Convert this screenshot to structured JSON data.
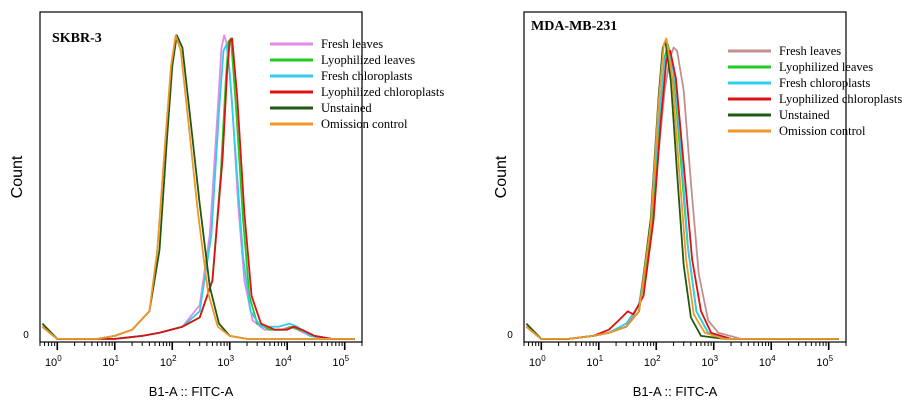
{
  "chart_data": [
    {
      "type": "line",
      "title": "SKBR-3",
      "xlabel": "B1-A :: FITC-A",
      "ylabel": "Count",
      "x_scale": "log",
      "xlim": [
        0.5,
        200000
      ],
      "ylim": [
        0,
        1.05
      ],
      "y_zero_label": "0",
      "x_ticks": [
        {
          "base": "10",
          "exp": "0",
          "value": 1
        },
        {
          "base": "10",
          "exp": "1",
          "value": 10
        },
        {
          "base": "10",
          "exp": "2",
          "value": 100
        },
        {
          "base": "10",
          "exp": "3",
          "value": 1000
        },
        {
          "base": "10",
          "exp": "4",
          "value": 10000
        },
        {
          "base": "10",
          "exp": "5",
          "value": 100000
        }
      ],
      "legend": "top-right",
      "series": [
        {
          "name": "Fresh leaves",
          "color": "#e58ae5",
          "points": [
            [
              0.55,
              0.05
            ],
            [
              1,
              0.01
            ],
            [
              10,
              0.01
            ],
            [
              30,
              0.02
            ],
            [
              60,
              0.03
            ],
            [
              150,
              0.05
            ],
            [
              300,
              0.12
            ],
            [
              450,
              0.35
            ],
            [
              600,
              0.72
            ],
            [
              720,
              0.96
            ],
            [
              800,
              1.0
            ],
            [
              900,
              0.97
            ],
            [
              1100,
              0.78
            ],
            [
              1400,
              0.45
            ],
            [
              1800,
              0.2
            ],
            [
              2500,
              0.07
            ],
            [
              4000,
              0.04
            ],
            [
              8000,
              0.04
            ],
            [
              11000,
              0.05
            ],
            [
              15000,
              0.04
            ],
            [
              25000,
              0.02
            ],
            [
              50000,
              0.01
            ],
            [
              150000,
              0.01
            ]
          ]
        },
        {
          "name": "Lyophilized leaves",
          "color": "#22cc22",
          "points": [
            [
              0.55,
              0.05
            ],
            [
              1,
              0.01
            ],
            [
              10,
              0.01
            ],
            [
              30,
              0.02
            ],
            [
              60,
              0.03
            ],
            [
              150,
              0.05
            ],
            [
              300,
              0.08
            ],
            [
              500,
              0.2
            ],
            [
              700,
              0.55
            ],
            [
              850,
              0.85
            ],
            [
              950,
              0.98
            ],
            [
              1050,
              0.99
            ],
            [
              1300,
              0.75
            ],
            [
              1700,
              0.4
            ],
            [
              2200,
              0.15
            ],
            [
              3000,
              0.06
            ],
            [
              5000,
              0.04
            ],
            [
              9000,
              0.04
            ],
            [
              12000,
              0.05
            ],
            [
              16000,
              0.04
            ],
            [
              30000,
              0.02
            ],
            [
              60000,
              0.01
            ],
            [
              150000,
              0.01
            ]
          ]
        },
        {
          "name": "Fresh chloroplasts",
          "color": "#33ccee",
          "points": [
            [
              0.55,
              0.05
            ],
            [
              1,
              0.01
            ],
            [
              10,
              0.01
            ],
            [
              30,
              0.02
            ],
            [
              60,
              0.03
            ],
            [
              150,
              0.05
            ],
            [
              300,
              0.1
            ],
            [
              480,
              0.35
            ],
            [
              650,
              0.75
            ],
            [
              780,
              0.95
            ],
            [
              880,
              0.97
            ],
            [
              1000,
              0.88
            ],
            [
              1300,
              0.58
            ],
            [
              1700,
              0.28
            ],
            [
              2300,
              0.1
            ],
            [
              3500,
              0.05
            ],
            [
              7000,
              0.05
            ],
            [
              11000,
              0.06
            ],
            [
              15000,
              0.05
            ],
            [
              25000,
              0.02
            ],
            [
              50000,
              0.01
            ],
            [
              150000,
              0.01
            ]
          ]
        },
        {
          "name": "Lyophilized chloroplasts",
          "color": "#dd1111",
          "points": [
            [
              0.55,
              0.05
            ],
            [
              1,
              0.01
            ],
            [
              10,
              0.01
            ],
            [
              30,
              0.02
            ],
            [
              60,
              0.03
            ],
            [
              150,
              0.05
            ],
            [
              300,
              0.08
            ],
            [
              500,
              0.2
            ],
            [
              750,
              0.6
            ],
            [
              900,
              0.88
            ],
            [
              1000,
              0.98
            ],
            [
              1100,
              0.99
            ],
            [
              1350,
              0.8
            ],
            [
              1800,
              0.42
            ],
            [
              2400,
              0.15
            ],
            [
              3500,
              0.06
            ],
            [
              6000,
              0.04
            ],
            [
              10000,
              0.04
            ],
            [
              13000,
              0.05
            ],
            [
              18000,
              0.04
            ],
            [
              30000,
              0.02
            ],
            [
              60000,
              0.01
            ],
            [
              150000,
              0.01
            ]
          ]
        },
        {
          "name": "Unstained",
          "color": "#1f5a10",
          "points": [
            [
              0.55,
              0.06
            ],
            [
              1,
              0.01
            ],
            [
              5,
              0.01
            ],
            [
              10,
              0.02
            ],
            [
              20,
              0.04
            ],
            [
              40,
              0.1
            ],
            [
              60,
              0.3
            ],
            [
              80,
              0.65
            ],
            [
              100,
              0.9
            ],
            [
              120,
              1.0
            ],
            [
              150,
              0.96
            ],
            [
              200,
              0.75
            ],
            [
              300,
              0.45
            ],
            [
              450,
              0.18
            ],
            [
              650,
              0.06
            ],
            [
              1000,
              0.02
            ],
            [
              2000,
              0.01
            ],
            [
              10000,
              0.01
            ],
            [
              150000,
              0.01
            ]
          ]
        },
        {
          "name": "Omission control",
          "color": "#f0962a",
          "points": [
            [
              0.55,
              0.05
            ],
            [
              1,
              0.01
            ],
            [
              5,
              0.01
            ],
            [
              10,
              0.02
            ],
            [
              20,
              0.04
            ],
            [
              40,
              0.1
            ],
            [
              55,
              0.3
            ],
            [
              75,
              0.65
            ],
            [
              95,
              0.9
            ],
            [
              115,
              1.0
            ],
            [
              140,
              0.95
            ],
            [
              190,
              0.72
            ],
            [
              280,
              0.42
            ],
            [
              420,
              0.16
            ],
            [
              620,
              0.05
            ],
            [
              1000,
              0.02
            ],
            [
              2000,
              0.01
            ],
            [
              10000,
              0.01
            ],
            [
              150000,
              0.01
            ]
          ]
        }
      ]
    },
    {
      "type": "line",
      "title": "MDA-MB-231",
      "xlabel": "B1-A :: FITC-A",
      "ylabel": "Count",
      "x_scale": "log",
      "xlim": [
        0.5,
        200000
      ],
      "ylim": [
        0,
        1.05
      ],
      "y_zero_label": "0",
      "x_ticks": [
        {
          "base": "10",
          "exp": "0",
          "value": 1
        },
        {
          "base": "10",
          "exp": "1",
          "value": 10
        },
        {
          "base": "10",
          "exp": "2",
          "value": 100
        },
        {
          "base": "10",
          "exp": "3",
          "value": 1000
        },
        {
          "base": "10",
          "exp": "4",
          "value": 10000
        },
        {
          "base": "10",
          "exp": "5",
          "value": 100000
        }
      ],
      "legend": "top-right",
      "series": [
        {
          "name": "Fresh leaves",
          "color": "#c09090",
          "points": [
            [
              0.55,
              0.05
            ],
            [
              1,
              0.01
            ],
            [
              3,
              0.01
            ],
            [
              8,
              0.02
            ],
            [
              15,
              0.03
            ],
            [
              30,
              0.05
            ],
            [
              50,
              0.12
            ],
            [
              80,
              0.35
            ],
            [
              110,
              0.62
            ],
            [
              140,
              0.82
            ],
            [
              170,
              0.92
            ],
            [
              200,
              0.96
            ],
            [
              230,
              0.95
            ],
            [
              300,
              0.82
            ],
            [
              400,
              0.52
            ],
            [
              550,
              0.22
            ],
            [
              800,
              0.07
            ],
            [
              1200,
              0.03
            ],
            [
              3000,
              0.01
            ],
            [
              150000,
              0.01
            ]
          ]
        },
        {
          "name": "Lyophilized leaves",
          "color": "#22cc22",
          "points": [
            [
              0.55,
              0.05
            ],
            [
              1,
              0.01
            ],
            [
              3,
              0.01
            ],
            [
              8,
              0.02
            ],
            [
              15,
              0.03
            ],
            [
              30,
              0.05
            ],
            [
              50,
              0.1
            ],
            [
              80,
              0.35
            ],
            [
              110,
              0.7
            ],
            [
              140,
              0.93
            ],
            [
              160,
              0.97
            ],
            [
              200,
              0.88
            ],
            [
              260,
              0.62
            ],
            [
              350,
              0.32
            ],
            [
              500,
              0.1
            ],
            [
              800,
              0.03
            ],
            [
              2000,
              0.01
            ],
            [
              150000,
              0.01
            ]
          ]
        },
        {
          "name": "Fresh chloroplasts",
          "color": "#33ccee",
          "points": [
            [
              0.55,
              0.05
            ],
            [
              1,
              0.01
            ],
            [
              3,
              0.01
            ],
            [
              8,
              0.02
            ],
            [
              15,
              0.03
            ],
            [
              30,
              0.06
            ],
            [
              50,
              0.12
            ],
            [
              80,
              0.38
            ],
            [
              110,
              0.72
            ],
            [
              140,
              0.92
            ],
            [
              165,
              0.95
            ],
            [
              210,
              0.86
            ],
            [
              270,
              0.62
            ],
            [
              360,
              0.3
            ],
            [
              500,
              0.1
            ],
            [
              800,
              0.03
            ],
            [
              2000,
              0.01
            ],
            [
              150000,
              0.01
            ]
          ]
        },
        {
          "name": "Lyophilized chloroplasts",
          "color": "#dd1111",
          "points": [
            [
              0.55,
              0.05
            ],
            [
              1,
              0.01
            ],
            [
              3,
              0.01
            ],
            [
              8,
              0.02
            ],
            [
              15,
              0.04
            ],
            [
              25,
              0.08
            ],
            [
              32,
              0.1
            ],
            [
              40,
              0.09
            ],
            [
              60,
              0.15
            ],
            [
              90,
              0.4
            ],
            [
              120,
              0.72
            ],
            [
              150,
              0.92
            ],
            [
              175,
              0.95
            ],
            [
              220,
              0.86
            ],
            [
              300,
              0.58
            ],
            [
              420,
              0.27
            ],
            [
              600,
              0.1
            ],
            [
              900,
              0.03
            ],
            [
              2000,
              0.01
            ],
            [
              150000,
              0.01
            ]
          ]
        },
        {
          "name": "Unstained",
          "color": "#1f5a10",
          "points": [
            [
              0.55,
              0.06
            ],
            [
              1,
              0.01
            ],
            [
              3,
              0.01
            ],
            [
              8,
              0.02
            ],
            [
              15,
              0.03
            ],
            [
              30,
              0.05
            ],
            [
              50,
              0.1
            ],
            [
              80,
              0.4
            ],
            [
              110,
              0.8
            ],
            [
              130,
              0.96
            ],
            [
              145,
              0.98
            ],
            [
              180,
              0.85
            ],
            [
              230,
              0.55
            ],
            [
              300,
              0.25
            ],
            [
              400,
              0.08
            ],
            [
              600,
              0.02
            ],
            [
              1500,
              0.01
            ],
            [
              150000,
              0.01
            ]
          ]
        },
        {
          "name": "Omission control",
          "color": "#f0962a",
          "points": [
            [
              0.55,
              0.05
            ],
            [
              1,
              0.01
            ],
            [
              3,
              0.01
            ],
            [
              8,
              0.02
            ],
            [
              15,
              0.03
            ],
            [
              30,
              0.05
            ],
            [
              50,
              0.1
            ],
            [
              80,
              0.38
            ],
            [
              110,
              0.78
            ],
            [
              135,
              0.97
            ],
            [
              150,
              0.99
            ],
            [
              190,
              0.86
            ],
            [
              250,
              0.56
            ],
            [
              330,
              0.27
            ],
            [
              450,
              0.09
            ],
            [
              700,
              0.03
            ],
            [
              1500,
              0.01
            ],
            [
              150000,
              0.01
            ]
          ]
        }
      ]
    }
  ]
}
